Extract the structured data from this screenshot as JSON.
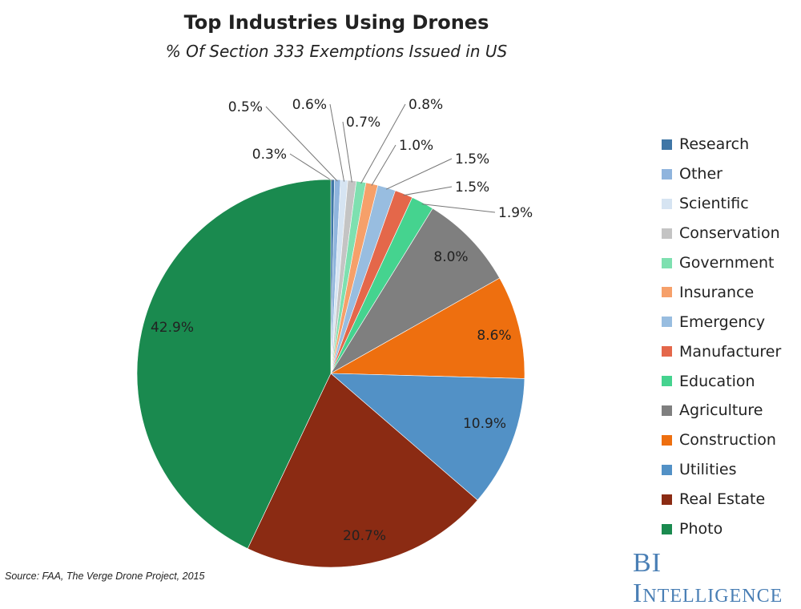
{
  "chart_data": {
    "type": "pie",
    "title": "Top Industries Using Drones",
    "subtitle": "% Of Section 333 Exemptions Issued in US",
    "start_angle": "12 o'clock, clockwise",
    "legend_placement": "right",
    "slices": [
      {
        "name": "Research",
        "value": 0.3,
        "label": "0.3%",
        "color": "#3f76a6"
      },
      {
        "name": "Other",
        "value": 0.5,
        "label": "0.5%",
        "color": "#8fb4dd"
      },
      {
        "name": "Scientific",
        "value": 0.6,
        "label": "0.6%",
        "color": "#d6e4f2"
      },
      {
        "name": "Conservation",
        "value": 0.7,
        "label": "0.7%",
        "color": "#c4c4c4"
      },
      {
        "name": "Government",
        "value": 0.8,
        "label": "0.8%",
        "color": "#7ee0b0"
      },
      {
        "name": "Insurance",
        "value": 1.0,
        "label": "1.0%",
        "color": "#f6a06a"
      },
      {
        "name": "Emergency",
        "value": 1.5,
        "label": "1.5%",
        "color": "#98bde0"
      },
      {
        "name": "Manufacturer",
        "value": 1.5,
        "label": "1.5%",
        "color": "#e4674a"
      },
      {
        "name": "Education",
        "value": 1.9,
        "label": "1.9%",
        "color": "#45d38f"
      },
      {
        "name": "Agriculture",
        "value": 8.0,
        "label": "8.0%",
        "color": "#7f7f7f"
      },
      {
        "name": "Construction",
        "value": 8.6,
        "label": "8.6%",
        "color": "#ee6f0f"
      },
      {
        "name": "Utilities",
        "value": 10.9,
        "label": "10.9%",
        "color": "#5291c6"
      },
      {
        "name": "Real Estate",
        "value": 20.7,
        "label": "20.7%",
        "color": "#8b2b13"
      },
      {
        "name": "Photo",
        "value": 42.9,
        "label": "42.9%",
        "color": "#1a8a4f"
      }
    ]
  },
  "source": "Source: FAA, The Verge Drone Project, 2015",
  "brand": "BI Intelligence"
}
